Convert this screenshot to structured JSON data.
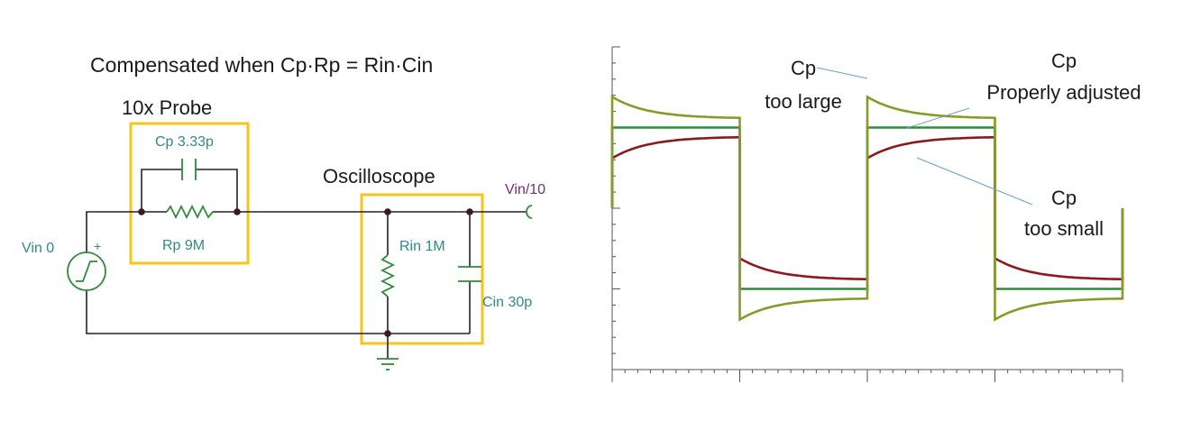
{
  "circuit": {
    "title": "Compensated when  Cp·Rp = Rin·Cin",
    "probe_label": "10x Probe",
    "scope_label": "Oscilloscope",
    "cp_label": "Cp 3.33p",
    "rp_label": "Rp 9M",
    "rin_label": "Rin 1M",
    "cin_label": "Cin 30p",
    "vin_label": "Vin 0",
    "vin_plus": "+",
    "vout_label": "Vin/10"
  },
  "scope": {
    "annotations": {
      "large_line1": "Cp",
      "large_line2": "too large",
      "proper_line1": "Cp",
      "proper_line2": "Properly adjusted",
      "small_line1": "Cp",
      "small_line2": "too small"
    }
  },
  "colors": {
    "wire": "#222222",
    "component": "#2e8b3a",
    "highlight_box": "#f5c518",
    "label_teal": "#2e8b86",
    "label_purple": "#7a2a7f",
    "trace_large": "#8a9a2a",
    "trace_proper": "#2e8b3a",
    "trace_small": "#8b1a1a",
    "axis": "#555555",
    "leader": "#6aa0c8"
  },
  "chart_data": {
    "type": "line",
    "x_divisions": 4,
    "y_divisions": 3,
    "series": [
      {
        "values": [
          1.38,
          1.12,
          -1.38,
          -1.12
        ]
      },
      {
        "values": [
          1.0,
          1.0,
          -1.0,
          -1.0
        ]
      },
      {
        "values": [
          0.62,
          0.88,
          -0.62,
          -0.88
        ]
      }
    ]
  }
}
